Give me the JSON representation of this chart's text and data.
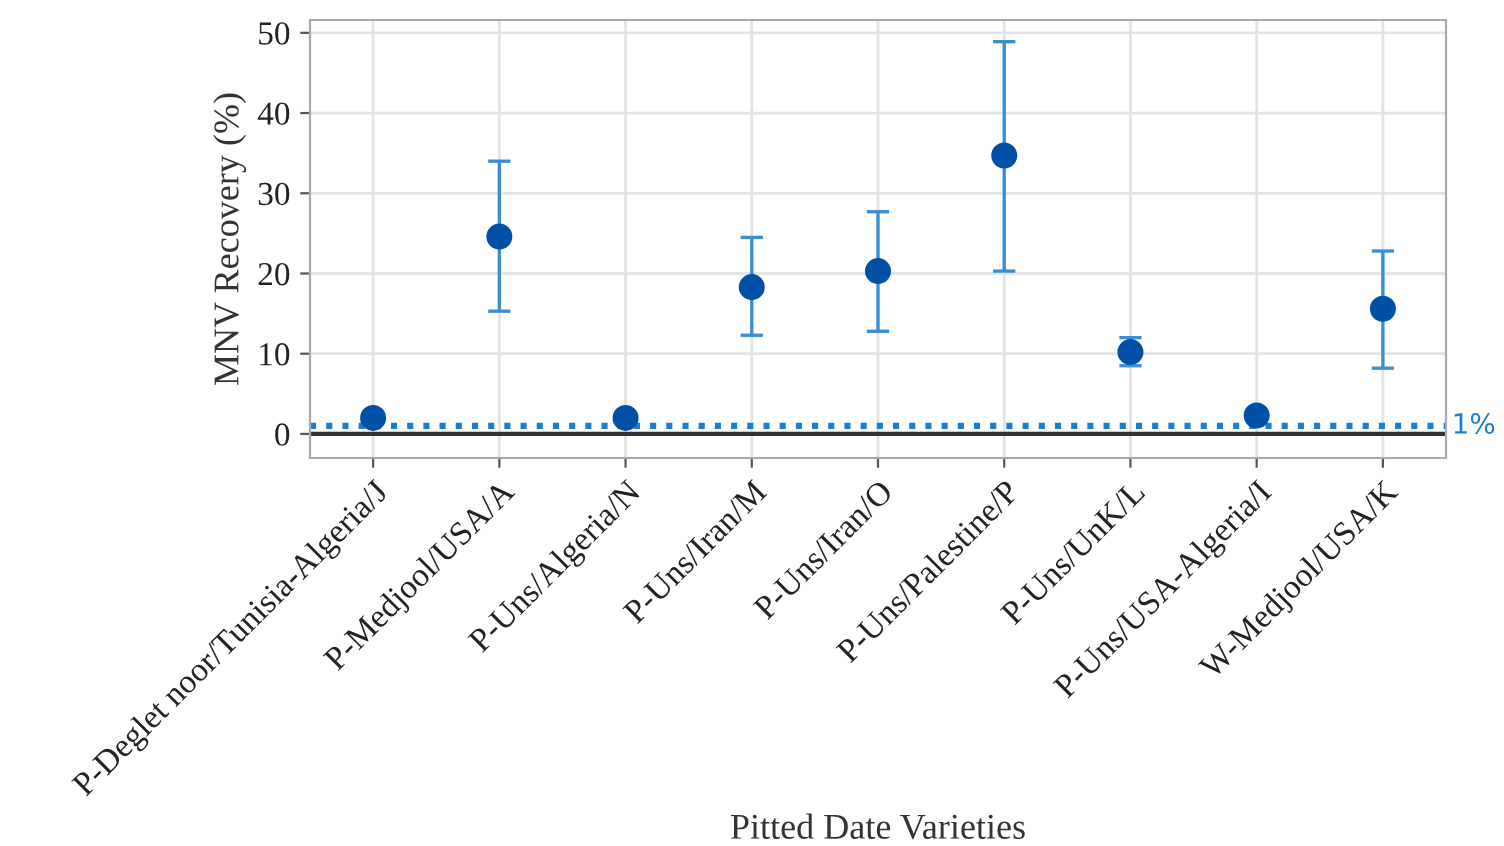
{
  "chart_data": {
    "type": "scatter",
    "xlabel": "Pitted Date Varieties",
    "ylabel": "MNV Recovery (%)",
    "categories": [
      "P-Deglet noor/Tunisia-Algeria/J",
      "P-Medjool/USA/A",
      "P-Uns/Algeria/N",
      "P-Uns/Iran/M",
      "P-Uns/Iran/O",
      "P-Uns/Palestine/P",
      "P-Uns/UnK/L",
      "P-Uns/USA-Algeria/I",
      "W-Medjool/USA/K"
    ],
    "series": [
      {
        "color": "#0050a8",
        "values": [
          2.0,
          24.6,
          2.0,
          18.3,
          20.3,
          34.7,
          10.2,
          2.3,
          15.6
        ],
        "errors": [
          null,
          [
            15.3,
            34.0
          ],
          null,
          [
            12.3,
            24.5
          ],
          [
            12.8,
            27.7
          ],
          [
            20.3,
            48.9
          ],
          [
            8.5,
            12.0
          ],
          null,
          [
            8.2,
            22.8
          ]
        ]
      }
    ],
    "ylim": [
      -3,
      51.6
    ],
    "yticks": [
      0,
      10,
      20,
      30,
      40,
      50
    ],
    "grid": true,
    "marker": "circle",
    "ref_lines": [
      {
        "axis": "y",
        "value": 1,
        "label": "1%",
        "color": "#1a7fd0",
        "line_style": "dotted"
      },
      {
        "axis": "y",
        "value": 0,
        "color": "#333333",
        "line_style": "solid"
      }
    ]
  }
}
